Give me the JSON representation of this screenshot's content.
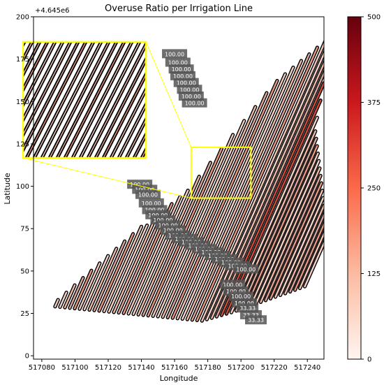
{
  "chart_data": {
    "type": "line",
    "title": "Overuse Ratio per Irrigation Line",
    "xlabel": "Longitude",
    "ylabel": "Latitude",
    "y_offset_label": "+4.645e6",
    "xlim": [
      517075,
      517250
    ],
    "ylim": [
      -2,
      200
    ],
    "xticks": [
      517080,
      517100,
      517120,
      517140,
      517160,
      517180,
      517200,
      517220,
      517240
    ],
    "yticks": [
      0,
      25,
      50,
      75,
      100,
      125,
      150,
      175,
      200
    ],
    "ytick_labels": [
      "0",
      "25",
      "50",
      "75",
      "100",
      "125",
      "150",
      "175",
      "200"
    ],
    "colorbar": {
      "colormap": "Reds",
      "range": [
        0,
        500
      ],
      "ticks": [
        0,
        125,
        250,
        375,
        500
      ]
    },
    "line_style": "black outline with color fill by overuse ratio",
    "line_colors": [
      "#f2c7b8",
      "#f5d2c5",
      "#efb9a6",
      "#d9a59a",
      "#e6977f"
    ],
    "highlight_line_color": "#cf4b3a",
    "line_count": 52,
    "zoom_box": {
      "x_range": [
        517170,
        517206
      ],
      "y_range": [
        93,
        123
      ],
      "color": "#ffff00"
    },
    "value_labels": [
      {
        "text": "100.00",
        "x": 517160,
        "y": 178
      },
      {
        "text": "100.00",
        "x": 517162,
        "y": 173
      },
      {
        "text": "100.00",
        "x": 517164,
        "y": 169
      },
      {
        "text": "100.00",
        "x": 517165,
        "y": 165
      },
      {
        "text": "100.00",
        "x": 517167,
        "y": 161
      },
      {
        "text": "100.00",
        "x": 517169,
        "y": 157
      },
      {
        "text": "100.00",
        "x": 517170,
        "y": 153
      },
      {
        "text": "100.00",
        "x": 517172,
        "y": 149
      },
      {
        "text": "100.00",
        "x": 517139,
        "y": 101
      },
      {
        "text": "100.00",
        "x": 517142,
        "y": 98
      },
      {
        "text": "100.00",
        "x": 517144,
        "y": 95
      },
      {
        "text": "100.00",
        "x": 517146,
        "y": 90
      },
      {
        "text": "100.00",
        "x": 517148,
        "y": 86
      },
      {
        "text": "100.00",
        "x": 517150,
        "y": 83
      },
      {
        "text": "100.00",
        "x": 517153,
        "y": 80
      },
      {
        "text": "100.00",
        "x": 517156,
        "y": 77
      },
      {
        "text": "100.00",
        "x": 517159,
        "y": 74
      },
      {
        "text": "100.00",
        "x": 517162,
        "y": 71
      },
      {
        "text": "100.00",
        "x": 517166,
        "y": 69
      },
      {
        "text": "100.00",
        "x": 517170,
        "y": 67
      },
      {
        "text": "100.00",
        "x": 517174,
        "y": 65
      },
      {
        "text": "100.00",
        "x": 517178,
        "y": 63
      },
      {
        "text": "100.00",
        "x": 517182,
        "y": 61
      },
      {
        "text": "100.00",
        "x": 517186,
        "y": 59
      },
      {
        "text": "100.00",
        "x": 517190,
        "y": 57
      },
      {
        "text": "100.00",
        "x": 517194,
        "y": 55
      },
      {
        "text": "100.00",
        "x": 517198,
        "y": 53
      },
      {
        "text": "100.00",
        "x": 517203,
        "y": 51
      },
      {
        "text": "100.00",
        "x": 517195,
        "y": 42
      },
      {
        "text": "100.00",
        "x": 517197,
        "y": 38
      },
      {
        "text": "100.00",
        "x": 517200,
        "y": 35
      },
      {
        "text": "100.00",
        "x": 517202,
        "y": 31
      },
      {
        "text": "33.33",
        "x": 517204,
        "y": 28
      },
      {
        "text": "33.33",
        "x": 517206,
        "y": 24
      },
      {
        "text": "33.33",
        "x": 517209,
        "y": 21
      }
    ]
  }
}
